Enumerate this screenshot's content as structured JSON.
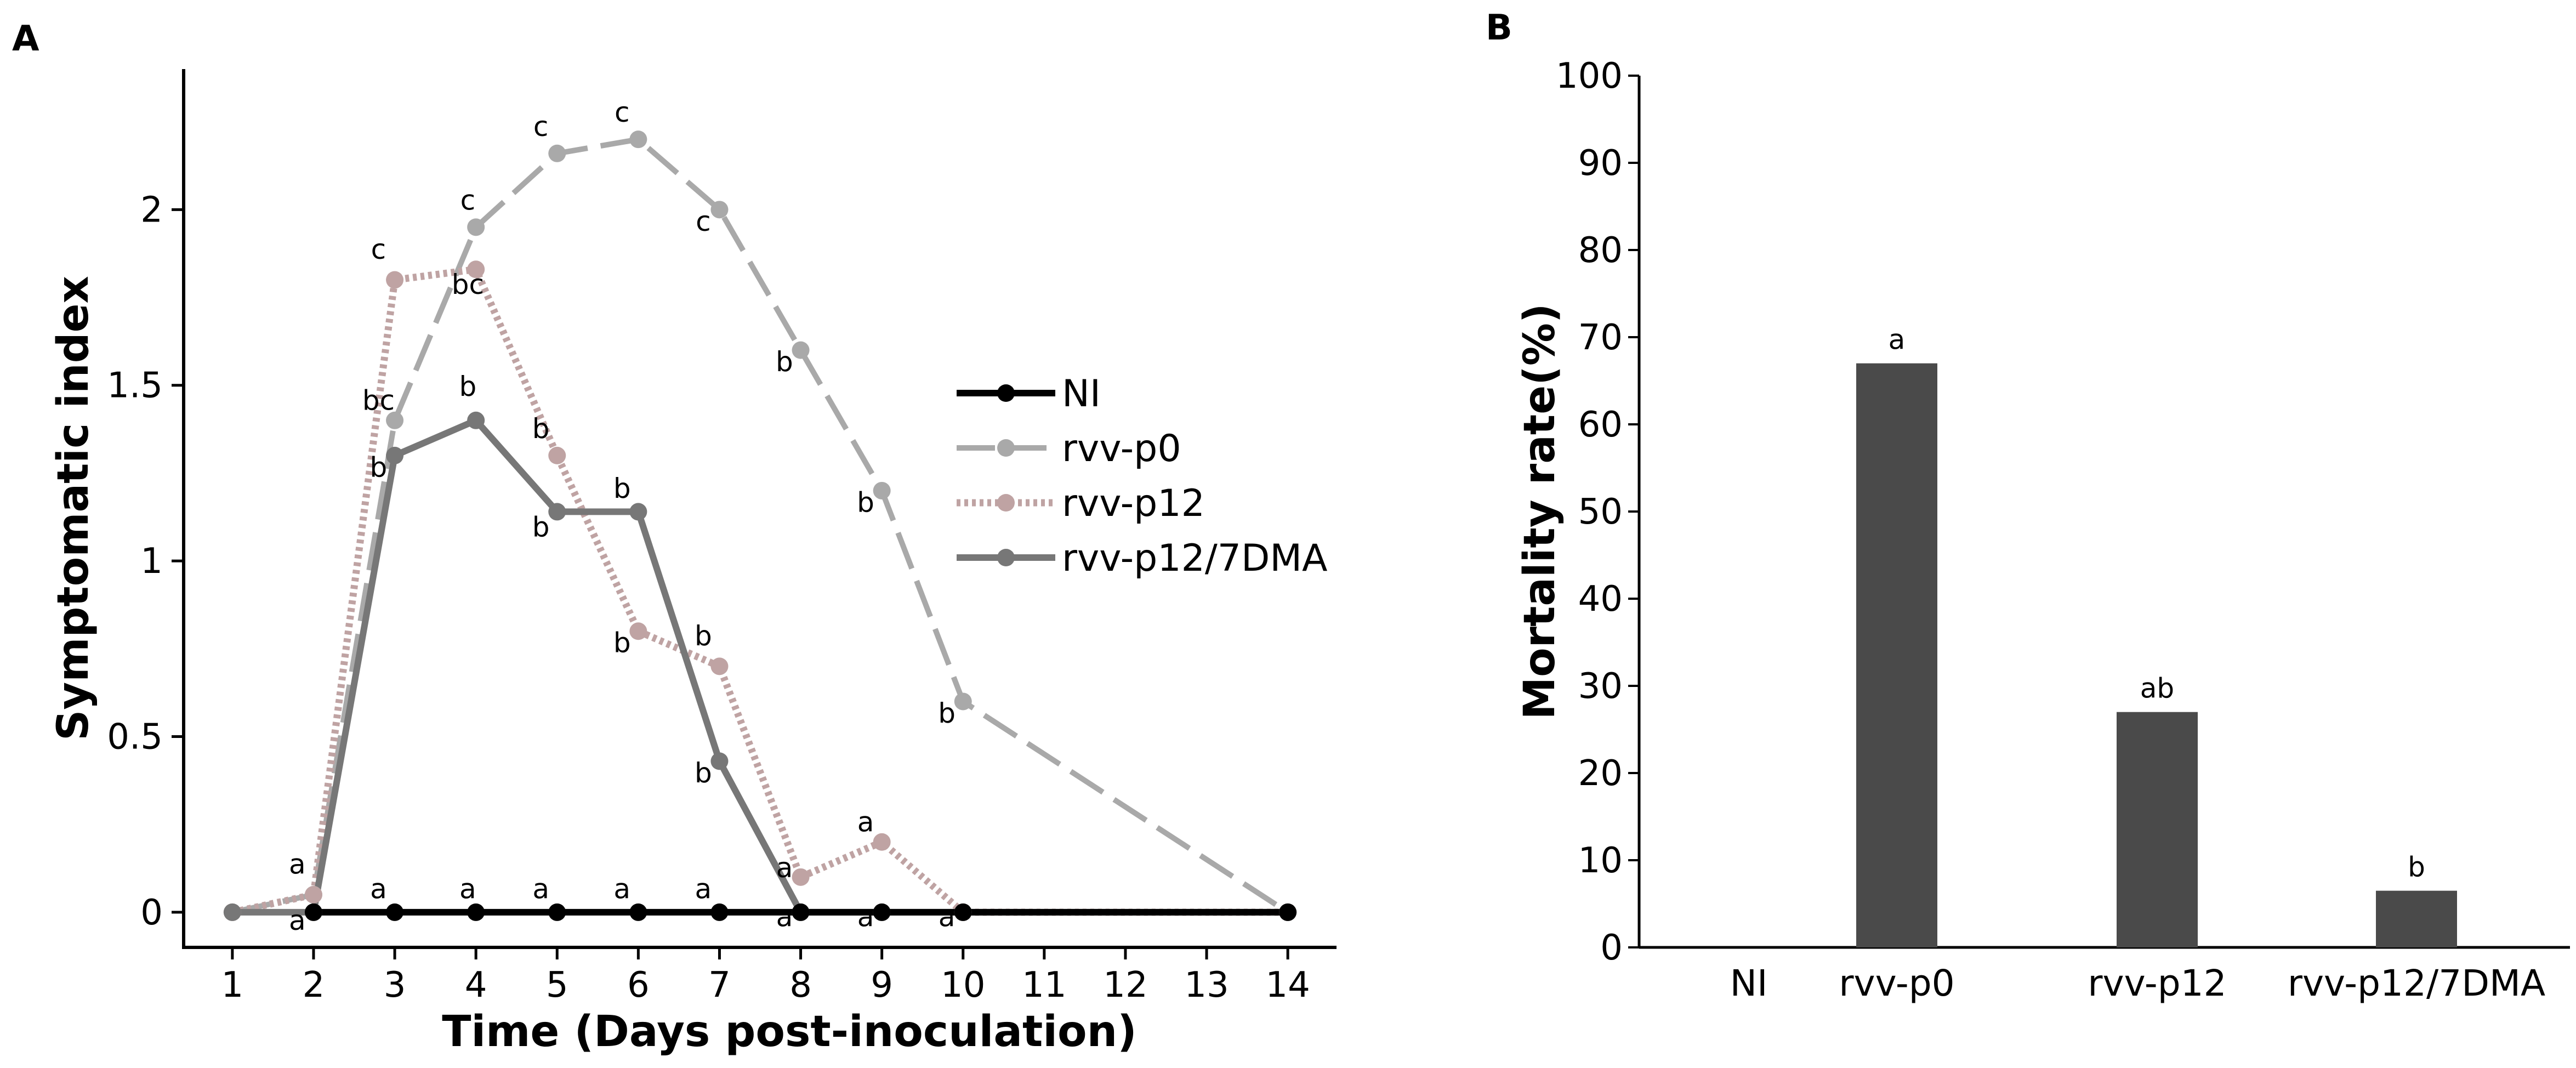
{
  "chart_data": [
    {
      "type": "line",
      "panel": "A",
      "title": "",
      "xlabel": "Time (Days post-inoculation)",
      "ylabel": "Symptomatic index",
      "xlim": [
        0.4,
        14.6
      ],
      "ylim": [
        -0.1,
        2.4
      ],
      "xticks": [
        1,
        2,
        3,
        4,
        5,
        6,
        7,
        8,
        9,
        10,
        11,
        12,
        13,
        14
      ],
      "yticks": [
        0,
        0.5,
        1,
        1.5,
        2
      ],
      "ytick_labels": [
        "0",
        "0.5",
        "1",
        "1.5",
        "2"
      ],
      "legend_position": "right",
      "series": [
        {
          "name": "NI",
          "color": "#000000",
          "dash": "solid",
          "x": [
            1,
            2,
            3,
            4,
            5,
            6,
            7,
            8,
            9,
            10,
            14
          ],
          "y": [
            0,
            0,
            0,
            0,
            0,
            0,
            0,
            0,
            0,
            0,
            0
          ]
        },
        {
          "name": "rvv-p0",
          "color": "#a9a9a9",
          "dash": "long-dash",
          "x": [
            1,
            2,
            3,
            4,
            5,
            6,
            7,
            8,
            9,
            10,
            14
          ],
          "y": [
            0,
            0.05,
            1.4,
            1.95,
            2.16,
            2.2,
            2.0,
            1.6,
            1.2,
            0.6,
            0
          ]
        },
        {
          "name": "rvv-p12",
          "color": "#bfa3a3",
          "dash": "dotted",
          "x": [
            1,
            2,
            3,
            4,
            5,
            6,
            7,
            8,
            9,
            10,
            14
          ],
          "y": [
            0,
            0.05,
            1.8,
            1.83,
            1.3,
            0.8,
            0.7,
            0.1,
            0.2,
            0,
            0
          ]
        },
        {
          "name": "rvv-p12/7DMA",
          "color": "#777777",
          "dash": "solid",
          "x": [
            1,
            2,
            3,
            4,
            5,
            6,
            7,
            8,
            9,
            10,
            14
          ],
          "y": [
            0,
            0,
            1.3,
            1.4,
            1.14,
            1.14,
            0.43,
            0,
            0,
            0,
            0
          ]
        }
      ],
      "annotations": [
        {
          "text": "a",
          "x": 1.8,
          "y": 0.11
        },
        {
          "text": "a",
          "x": 1.8,
          "y": -0.05
        },
        {
          "text": "c",
          "x": 2.8,
          "y": 1.86
        },
        {
          "text": "bc",
          "x": 2.8,
          "y": 1.43
        },
        {
          "text": "b",
          "x": 2.8,
          "y": 1.24
        },
        {
          "text": "a",
          "x": 2.8,
          "y": 0.04
        },
        {
          "text": "c",
          "x": 3.9,
          "y": 2.0
        },
        {
          "text": "bc",
          "x": 3.9,
          "y": 1.76
        },
        {
          "text": "b",
          "x": 3.9,
          "y": 1.47
        },
        {
          "text": "a",
          "x": 3.9,
          "y": 0.04
        },
        {
          "text": "c",
          "x": 4.8,
          "y": 2.21
        },
        {
          "text": "b",
          "x": 4.8,
          "y": 1.35
        },
        {
          "text": "b",
          "x": 4.8,
          "y": 1.07
        },
        {
          "text": "a",
          "x": 4.8,
          "y": 0.04
        },
        {
          "text": "c",
          "x": 5.8,
          "y": 2.25
        },
        {
          "text": "b",
          "x": 5.8,
          "y": 1.18
        },
        {
          "text": "b",
          "x": 5.8,
          "y": 0.74
        },
        {
          "text": "a",
          "x": 5.8,
          "y": 0.04
        },
        {
          "text": "c",
          "x": 6.8,
          "y": 1.94
        },
        {
          "text": "b",
          "x": 6.8,
          "y": 0.76
        },
        {
          "text": "b",
          "x": 6.8,
          "y": 0.37
        },
        {
          "text": "a",
          "x": 6.8,
          "y": 0.04
        },
        {
          "text": "b",
          "x": 7.8,
          "y": 1.54
        },
        {
          "text": "a",
          "x": 7.8,
          "y": 0.1
        },
        {
          "text": "a",
          "x": 7.8,
          "y": -0.04
        },
        {
          "text": "a",
          "x": 8.8,
          "y": 0.23
        },
        {
          "text": "b",
          "x": 8.8,
          "y": 1.14
        },
        {
          "text": "a",
          "x": 8.8,
          "y": -0.04
        },
        {
          "text": "b",
          "x": 9.8,
          "y": 0.54
        },
        {
          "text": "a",
          "x": 9.8,
          "y": -0.04
        }
      ]
    },
    {
      "type": "bar",
      "panel": "B",
      "title": "",
      "xlabel": "",
      "ylabel": "Mortality rate(%)",
      "ylim": [
        0,
        100
      ],
      "yticks": [
        0,
        10,
        20,
        30,
        40,
        50,
        60,
        70,
        80,
        90,
        100
      ],
      "categories": [
        "NI",
        "rvv-p0",
        "rvv-p12",
        "rvv-p12/7DMA"
      ],
      "values": [
        0,
        67,
        27,
        6.5
      ],
      "bar_color": "#4a4a4a",
      "labels": [
        "",
        "a",
        "ab",
        "b"
      ]
    }
  ],
  "panels": {
    "a_label": "A",
    "b_label": "B"
  }
}
